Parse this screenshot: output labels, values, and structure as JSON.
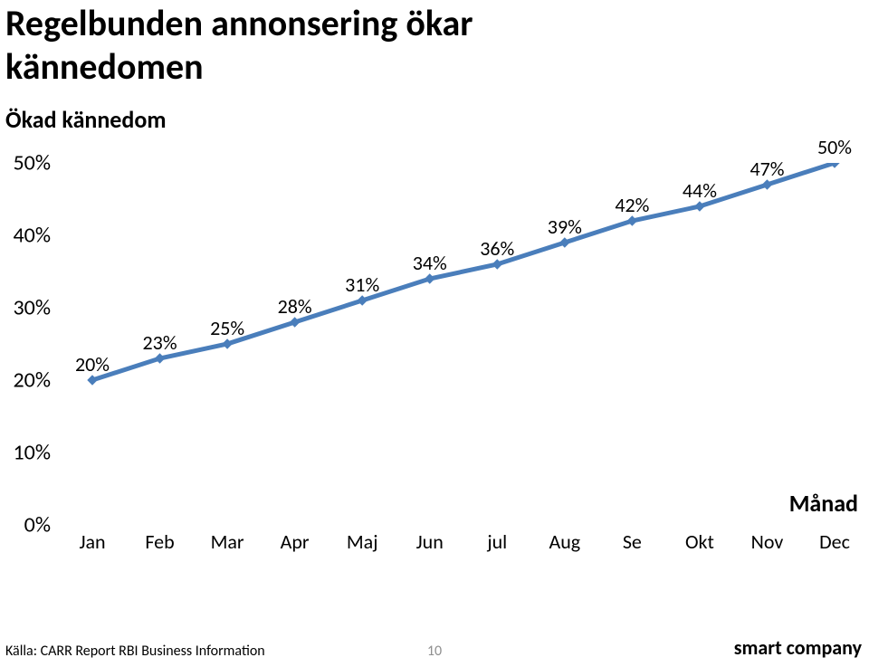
{
  "title_line1": "Regelbunden annonsering ökar",
  "title_line2": "kännedomen",
  "subtitle": "Ökad kännedom",
  "chart": {
    "type": "line",
    "categories": [
      "Jan",
      "Feb",
      "Mar",
      "Apr",
      "Maj",
      "Jun",
      "jul",
      "Aug",
      "Se",
      "Okt",
      "Nov",
      "Dec"
    ],
    "values": [
      20,
      23,
      25,
      28,
      31,
      34,
      36,
      39,
      42,
      44,
      47,
      50
    ],
    "point_labels": [
      "20%",
      "23%",
      "25%",
      "28%",
      "31%",
      "34%",
      "36%",
      "39%",
      "42%",
      "44%",
      "47%",
      "50%"
    ],
    "y_ticks": [
      0,
      10,
      20,
      30,
      40,
      50
    ],
    "y_tick_labels": [
      "0%",
      "10%",
      "20%",
      "30%",
      "40%",
      "50%"
    ],
    "ylim": [
      0,
      50
    ],
    "x_axis_title": "Månad",
    "line_color": "#4a7ebb",
    "line_width": 5,
    "marker_fill": "#4a7ebb",
    "marker_size": 10,
    "background_color": "#ffffff"
  },
  "footer": {
    "source": "Källa: CARR Report RBI Business Information",
    "page": "10",
    "brand": "smart company"
  }
}
